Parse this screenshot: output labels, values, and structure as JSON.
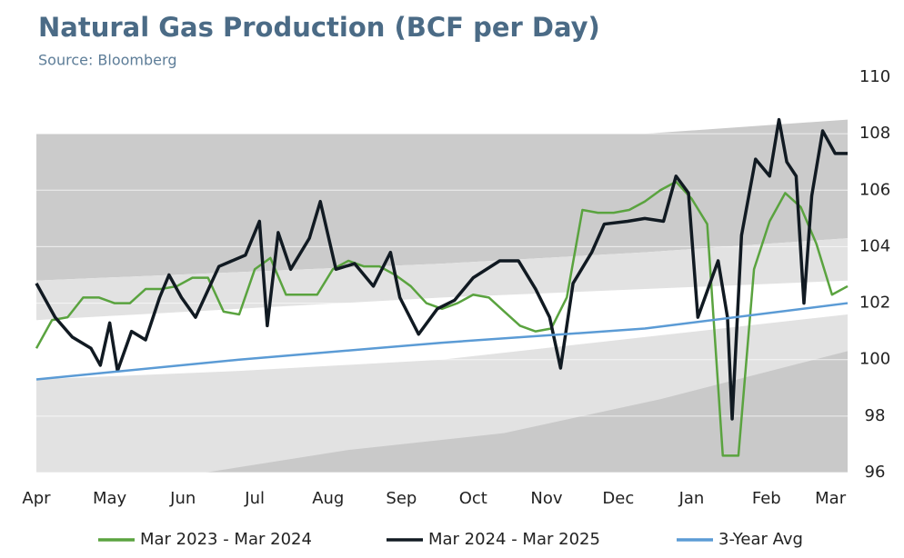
{
  "chart_data": {
    "type": "line",
    "title": "Natural Gas Production (BCF per Day)",
    "subtitle": "Source: Bloomberg",
    "xlim": [
      0,
      52
    ],
    "xticks": [
      {
        "value": 0,
        "label": "Apr"
      },
      {
        "value": 4.7,
        "label": "May"
      },
      {
        "value": 9.4,
        "label": "Jun"
      },
      {
        "value": 14,
        "label": "Jul"
      },
      {
        "value": 18.7,
        "label": "Aug"
      },
      {
        "value": 23.4,
        "label": "Sep"
      },
      {
        "value": 28,
        "label": "Oct"
      },
      {
        "value": 32.7,
        "label": "Nov"
      },
      {
        "value": 37.3,
        "label": "Dec"
      },
      {
        "value": 42,
        "label": "Jan"
      },
      {
        "value": 46.8,
        "label": "Feb"
      },
      {
        "value": 50.9,
        "label": "Mar"
      }
    ],
    "ylim": [
      96,
      110
    ],
    "yticks": [
      96,
      98,
      100,
      102,
      104,
      106,
      108,
      110
    ],
    "grid": true,
    "legend": "bottom",
    "bands": [
      {
        "color": "#e2e2e2",
        "x": [
          0,
          13,
          26,
          39,
          52
        ],
        "lower": [
          96,
          96,
          96,
          96,
          96
        ],
        "upper": [
          99.3,
          99.6,
          100.0,
          100.8,
          101.6
        ]
      },
      {
        "color": "#c9c9c9",
        "x": [
          10.8,
          20,
          30,
          40,
          52
        ],
        "lower": [
          96,
          96,
          96,
          96,
          96
        ],
        "upper": [
          96,
          96.8,
          97.4,
          98.6,
          100.3
        ]
      },
      {
        "color": "#cbcbcb",
        "x": [
          0,
          13,
          26,
          39,
          52
        ],
        "lower": [
          102.8,
          103.1,
          103.4,
          103.8,
          104.3
        ],
        "upper": [
          108,
          108,
          108,
          108,
          108.5
        ]
      },
      {
        "color": "#e2e2e2",
        "x": [
          0,
          13,
          26,
          39,
          52
        ],
        "lower": [
          101.4,
          101.8,
          102.2,
          102.5,
          102.8
        ],
        "upper": [
          102.8,
          103.1,
          103.4,
          103.8,
          104.3
        ]
      }
    ],
    "series": [
      {
        "name": "Mar 2023 - Mar 2024",
        "color": "#5aa33f",
        "width": 2.5,
        "x": [
          0,
          1,
          2,
          3,
          4,
          5,
          6,
          7,
          8,
          9,
          10,
          11,
          12,
          13,
          14,
          15,
          16,
          17,
          18,
          19,
          20,
          21,
          22,
          23,
          24,
          25,
          26,
          27,
          28,
          29,
          30,
          31,
          32,
          33,
          34,
          35,
          36,
          37,
          38,
          39,
          40,
          41,
          42,
          43,
          44,
          45,
          46,
          47,
          48,
          49,
          50,
          51,
          52
        ],
        "values": [
          100.4,
          101.4,
          101.5,
          102.2,
          102.2,
          102.0,
          102.0,
          102.5,
          102.5,
          102.6,
          102.9,
          102.9,
          101.7,
          101.6,
          103.2,
          103.6,
          102.3,
          102.3,
          102.3,
          103.2,
          103.5,
          103.3,
          103.3,
          103.0,
          102.6,
          102.0,
          101.8,
          102.0,
          102.3,
          102.2,
          101.7,
          101.2,
          101.0,
          101.1,
          102.2,
          105.3,
          105.2,
          105.2,
          105.3,
          105.6,
          106.0,
          106.3,
          105.7,
          104.8,
          96.6,
          96.6,
          103.2,
          104.9,
          105.9,
          105.4,
          104.1,
          102.3,
          102.6
        ]
      },
      {
        "name": "Mar 2024 - Mar 2025",
        "color": "#111a22",
        "width": 3.5,
        "x": [
          0,
          1.2,
          2.3,
          3.5,
          4.1,
          4.7,
          5.2,
          6.1,
          7,
          7.9,
          8.5,
          9.3,
          10.2,
          11.7,
          13.4,
          14.3,
          14.8,
          15.5,
          16.3,
          17.5,
          18.2,
          19.2,
          20.4,
          21.6,
          22.7,
          23.3,
          24.5,
          25.7,
          26.8,
          28,
          29.7,
          30.9,
          32,
          32.9,
          33.6,
          34.4,
          35.6,
          36.4,
          37.9,
          39,
          40.2,
          41,
          41.8,
          42.4,
          43.7,
          44.3,
          44.6,
          45.2,
          46.1,
          47,
          47.6,
          48.1,
          48.7,
          49.2,
          49.7,
          50.4,
          51.2,
          52
        ],
        "values": [
          102.7,
          101.5,
          100.8,
          100.4,
          99.8,
          101.3,
          99.6,
          101.0,
          100.7,
          102.2,
          103.0,
          102.2,
          101.5,
          103.3,
          103.7,
          104.9,
          101.2,
          104.5,
          103.2,
          104.3,
          105.6,
          103.2,
          103.4,
          102.6,
          103.8,
          102.2,
          100.9,
          101.8,
          102.1,
          102.9,
          103.5,
          103.5,
          102.5,
          101.5,
          99.7,
          102.7,
          103.8,
          104.8,
          104.9,
          105.0,
          104.9,
          106.5,
          105.9,
          101.5,
          103.5,
          101.5,
          97.9,
          104.4,
          107.1,
          106.5,
          108.5,
          107.0,
          106.5,
          102.0,
          105.8,
          108.1,
          107.3,
          107.3
        ]
      },
      {
        "name": "3-Year Avg",
        "color": "#5b9bd5",
        "width": 2.5,
        "x": [
          0,
          13,
          26,
          39,
          52
        ],
        "values": [
          99.3,
          100.0,
          100.6,
          101.1,
          102.0
        ]
      }
    ]
  }
}
